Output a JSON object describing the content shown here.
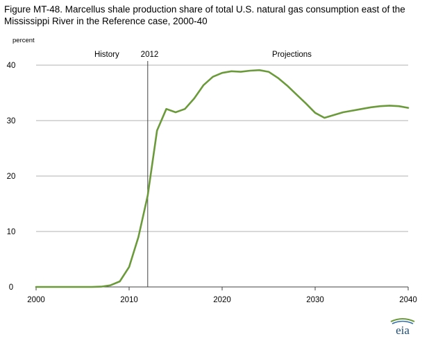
{
  "page": {
    "title_line1": "Figure MT-48. Marcellus shale production share of total U.S. natural gas consumption east of the",
    "title_line2": "Mississippi River in the Reference case, 2000-40",
    "logo_text": "eia"
  },
  "colors": {
    "series": "#6a9a3a",
    "grid": "#b0b0b0",
    "divider": "#404040",
    "axis": "#404040"
  },
  "chart_data": {
    "type": "line",
    "title": "Figure MT-48. Marcellus shale production share of total U.S. natural gas consumption east of the Mississippi River in the Reference case, 2000-40",
    "ylabel": "percent",
    "xlabel": "",
    "xlim": [
      2000,
      2040
    ],
    "ylim": [
      0,
      40
    ],
    "xticks": [
      2000,
      2010,
      2020,
      2030,
      2040
    ],
    "yticks": [
      0,
      10,
      20,
      30,
      40
    ],
    "grid": true,
    "divider_year": 2012,
    "annotations": [
      {
        "text": "History",
        "x": 2007.6
      },
      {
        "text": "2012",
        "x": 2012.2
      },
      {
        "text": "Projections",
        "x": 2027.5
      }
    ],
    "x": [
      2000,
      2001,
      2002,
      2003,
      2004,
      2005,
      2006,
      2007,
      2008,
      2009,
      2010,
      2011,
      2012,
      2013,
      2014,
      2015,
      2016,
      2017,
      2018,
      2019,
      2020,
      2021,
      2022,
      2023,
      2024,
      2025,
      2026,
      2027,
      2028,
      2029,
      2030,
      2031,
      2032,
      2033,
      2034,
      2035,
      2036,
      2037,
      2038,
      2039,
      2040
    ],
    "values": [
      0,
      0,
      0,
      0,
      0,
      0,
      0,
      0.05,
      0.3,
      1.0,
      3.6,
      9.0,
      16.5,
      28.2,
      32.1,
      31.5,
      32.1,
      34.0,
      36.4,
      37.9,
      38.6,
      38.9,
      38.8,
      39.0,
      39.1,
      38.8,
      37.7,
      36.3,
      34.7,
      33.1,
      31.4,
      30.5,
      31.0,
      31.5,
      31.8,
      32.1,
      32.4,
      32.6,
      32.7,
      32.6,
      32.3
    ]
  }
}
